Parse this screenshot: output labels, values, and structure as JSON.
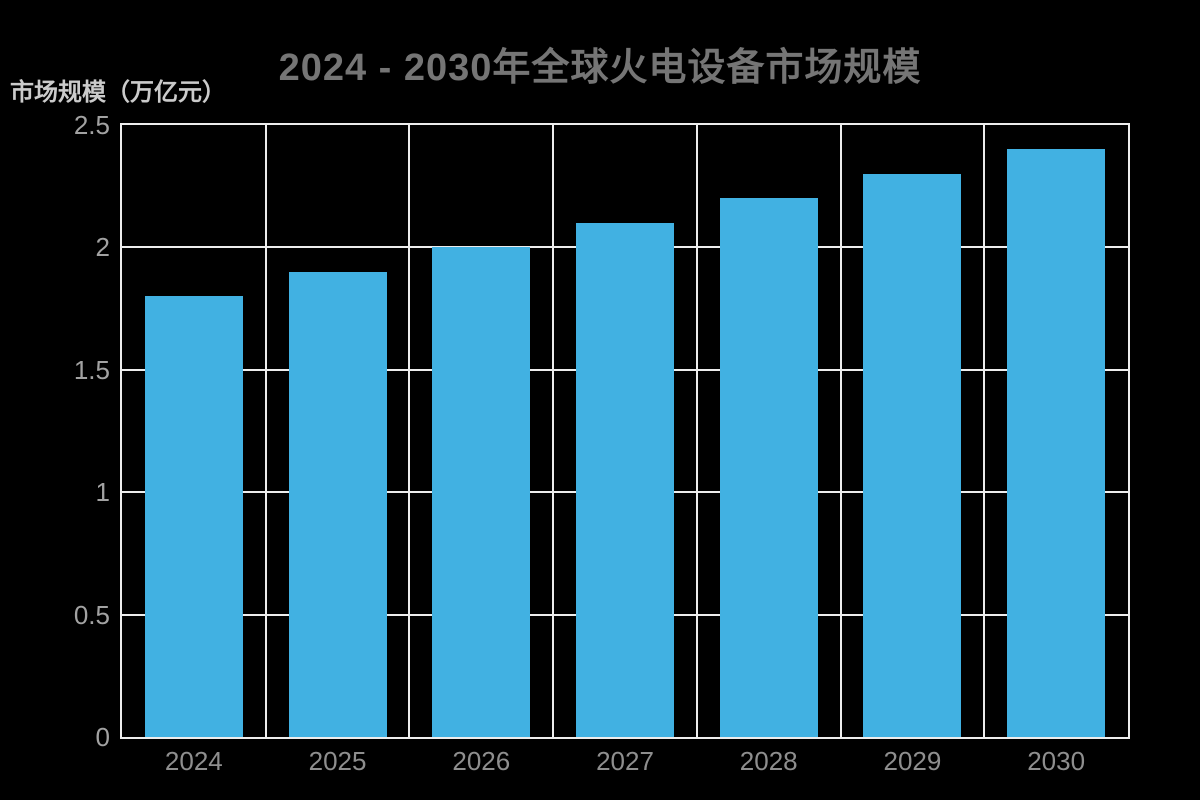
{
  "page": {
    "background_color": "#000000"
  },
  "title": {
    "text": "2024 - 2030年全球火电设备市场规模",
    "color": "#757575"
  },
  "y_axis_title": {
    "text": "市场规模（万亿元）",
    "color": "#cbcbcb"
  },
  "chart_data": {
    "type": "bar",
    "title": "2024 - 2030年全球火电设备市场规模",
    "xlabel": "",
    "ylabel": "市场规模（万亿元）",
    "categories": [
      "2024",
      "2025",
      "2026",
      "2027",
      "2028",
      "2029",
      "2030"
    ],
    "values": [
      1.8,
      1.9,
      2.0,
      2.1,
      2.2,
      2.3,
      2.4
    ],
    "ylim": [
      0,
      2.5
    ],
    "yticks": [
      0,
      0.5,
      1,
      1.5,
      2,
      2.5
    ],
    "grid": true,
    "legend": false,
    "bar_color": "#41b1e2",
    "grid_color": "#ededed",
    "y_tick_color": "#a2a2a2",
    "x_tick_color": "#8e8e8e"
  }
}
